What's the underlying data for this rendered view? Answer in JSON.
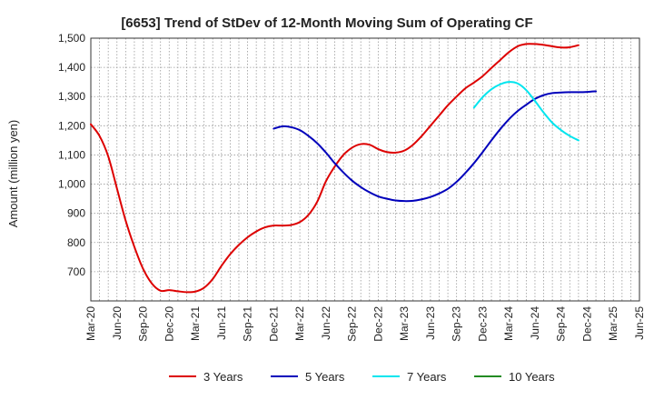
{
  "chart_data": {
    "type": "line",
    "title": "[6653]  Trend of StDev of 12-Month Moving Sum of Operating CF",
    "xlabel": "",
    "ylabel": "Amount (million yen)",
    "ylim": [
      600,
      1500
    ],
    "y_ticks": [
      700,
      800,
      900,
      "1,000",
      "1,100",
      "1,200",
      "1,300",
      "1,400",
      "1,500"
    ],
    "x_tick_labels": [
      "Mar-20",
      "Jun-20",
      "Sep-20",
      "Dec-20",
      "Mar-21",
      "Jun-21",
      "Sep-21",
      "Dec-21",
      "Mar-22",
      "Jun-22",
      "Sep-22",
      "Dec-22",
      "Mar-23",
      "Jun-23",
      "Sep-23",
      "Dec-23",
      "Mar-24",
      "Jun-24",
      "Sep-24",
      "Dec-24",
      "Mar-25",
      "Jun-25"
    ],
    "x_range_months": [
      "2020-03",
      "2025-06"
    ],
    "grid": true,
    "legend_position": "bottom",
    "series": [
      {
        "name": "3 Years",
        "color": "#dd0000",
        "start": "2020-03",
        "values": [
          1205,
          1165,
          1095,
          985,
          875,
          785,
          710,
          660,
          635,
          637,
          633,
          630,
          632,
          645,
          675,
          720,
          760,
          792,
          818,
          838,
          852,
          858,
          858,
          860,
          870,
          895,
          940,
          1010,
          1060,
          1100,
          1125,
          1137,
          1135,
          1120,
          1110,
          1108,
          1115,
          1135,
          1165,
          1200,
          1235,
          1270,
          1300,
          1328,
          1348,
          1370,
          1398,
          1425,
          1452,
          1472,
          1480,
          1480,
          1477,
          1472,
          1468,
          1469,
          1476
        ]
      },
      {
        "name": "5 Years",
        "color": "#0000bb",
        "start": "2021-12",
        "values": [
          1190,
          1198,
          1195,
          1185,
          1165,
          1140,
          1108,
          1072,
          1040,
          1012,
          990,
          972,
          958,
          950,
          944,
          942,
          943,
          948,
          956,
          968,
          984,
          1008,
          1038,
          1072,
          1110,
          1150,
          1188,
          1222,
          1250,
          1272,
          1292,
          1305,
          1312,
          1314,
          1315,
          1315,
          1316,
          1318
        ]
      },
      {
        "name": "7 Years",
        "color": "#00e5ee",
        "start": "2023-11",
        "values": [
          1262,
          1298,
          1325,
          1342,
          1350,
          1345,
          1322,
          1285,
          1245,
          1210,
          1185,
          1165,
          1150
        ]
      },
      {
        "name": "10 Years",
        "color": "#228b22",
        "start": "2024-12",
        "values": []
      }
    ]
  }
}
